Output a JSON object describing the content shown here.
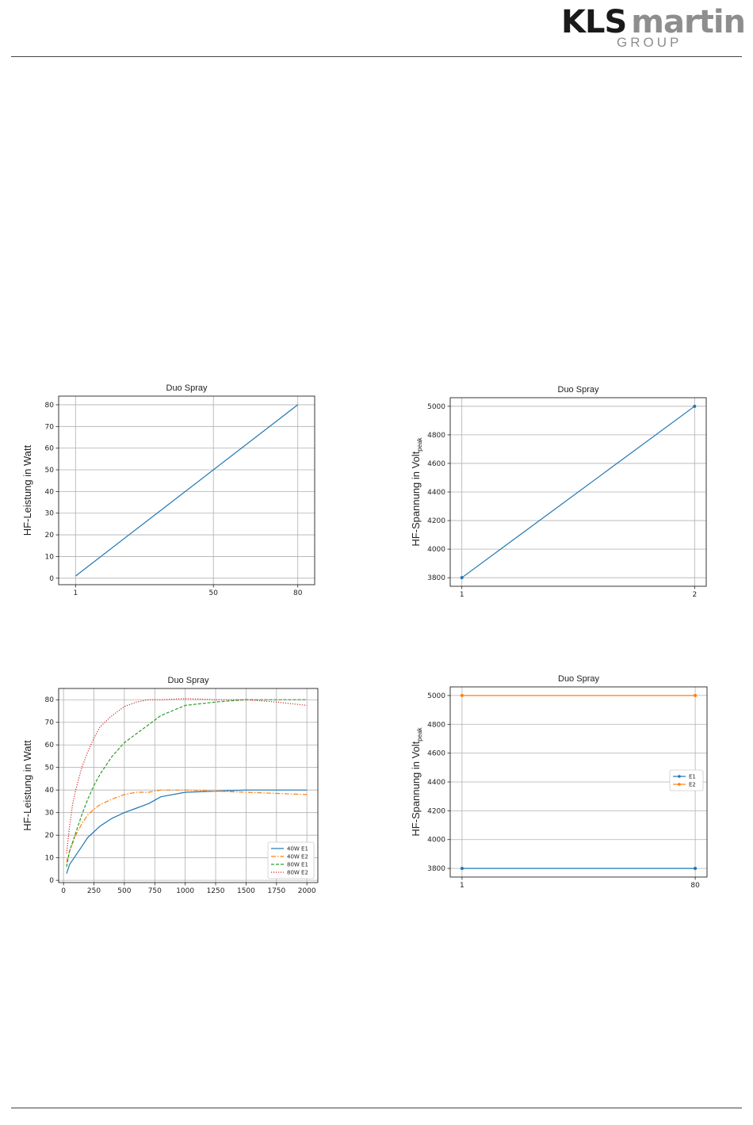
{
  "header": {
    "logo_text": "KLS martin",
    "logo_kls": "KLS",
    "logo_martin": "martin",
    "logo_group": "GROUP"
  },
  "colors": {
    "blue": "#1f77b4",
    "orange": "#ff7f0e",
    "green": "#2ca02c",
    "red": "#d62728",
    "grid": "#b0b0b0",
    "logo_gray": "#8e8e8e",
    "logo_dark": "#1a1a1a"
  },
  "chart_data": [
    {
      "id": "c1",
      "type": "line",
      "title": "Duo Spray",
      "ylabel": "HF-Leistung in Watt",
      "ylabel_sub": "",
      "xlim": [
        -5,
        86
      ],
      "ylim": [
        -3,
        84
      ],
      "xticks": [
        1,
        50,
        80
      ],
      "yticks": [
        0,
        10,
        20,
        30,
        40,
        50,
        60,
        70,
        80
      ],
      "grid": true,
      "legend": null,
      "series": [
        {
          "x": [
            1,
            80
          ],
          "y": [
            1,
            80
          ],
          "color": "#1f77b4",
          "dash": "",
          "marker": false
        }
      ]
    },
    {
      "id": "c2",
      "type": "line",
      "title": "Duo Spray",
      "ylabel": "HF-Spannung in Volt",
      "ylabel_sub": "peak",
      "xlim": [
        0.95,
        2.05
      ],
      "ylim": [
        3740,
        5060
      ],
      "xticks": [
        1,
        2
      ],
      "yticks": [
        3800,
        4000,
        4200,
        4400,
        4600,
        4800,
        5000
      ],
      "grid": true,
      "legend": null,
      "series": [
        {
          "x": [
            1,
            2
          ],
          "y": [
            3800,
            5000
          ],
          "color": "#1f77b4",
          "dash": "",
          "marker": true
        }
      ]
    },
    {
      "id": "c3",
      "type": "line",
      "title": "Duo Spray",
      "ylabel": "HF-Leistung in Watt",
      "ylabel_sub": "",
      "xlim": [
        -40,
        2090
      ],
      "ylim": [
        -1,
        85
      ],
      "xticks": [
        0,
        250,
        500,
        750,
        1000,
        1250,
        1500,
        1750,
        2000
      ],
      "yticks": [
        0,
        10,
        20,
        30,
        40,
        50,
        60,
        70,
        80
      ],
      "grid": true,
      "legend": "lower right",
      "series": [
        {
          "name": "40W E1",
          "color": "#1f77b4",
          "dash": "",
          "x": [
            25,
            50,
            100,
            150,
            200,
            300,
            400,
            500,
            600,
            700,
            800,
            1000,
            1250,
            1500,
            2000
          ],
          "y": [
            3,
            7,
            11,
            15,
            19,
            24,
            27.5,
            30,
            32,
            34,
            37,
            39,
            39.5,
            40,
            40
          ]
        },
        {
          "name": "40W E2",
          "color": "#ff7f0e",
          "dash": "6,2,1.5,2",
          "x": [
            25,
            50,
            100,
            150,
            200,
            250,
            300,
            400,
            500,
            600,
            700,
            800,
            1000,
            1250,
            1500,
            2000
          ],
          "y": [
            8,
            13,
            20,
            25,
            29,
            31.5,
            33.5,
            36,
            38,
            39,
            39,
            40,
            40,
            39.5,
            39,
            38
          ]
        },
        {
          "name": "80W E1",
          "color": "#2ca02c",
          "dash": "4,2",
          "x": [
            25,
            50,
            100,
            150,
            200,
            250,
            300,
            400,
            500,
            600,
            700,
            800,
            1000,
            1250,
            1500,
            2000
          ],
          "y": [
            6,
            13,
            21,
            29,
            36,
            42,
            47,
            55,
            61,
            65,
            69,
            73,
            77.5,
            79,
            80,
            80
          ]
        },
        {
          "name": "80W E2",
          "color": "#d62728",
          "dash": "1.2,1.8",
          "x": [
            25,
            50,
            75,
            100,
            150,
            200,
            250,
            300,
            400,
            500,
            600,
            700,
            800,
            1000,
            1250,
            1500,
            1750,
            2000
          ],
          "y": [
            12,
            24,
            34,
            40,
            50,
            57,
            63,
            68,
            73,
            77,
            79,
            80,
            80,
            80.5,
            80,
            80,
            79,
            77.5
          ]
        }
      ]
    },
    {
      "id": "c4",
      "type": "line",
      "title": "Duo Spray",
      "ylabel": "HF-Spannung in Volt",
      "ylabel_sub": "peak",
      "xlim": [
        -3,
        84
      ],
      "ylim": [
        3740,
        5060
      ],
      "xticks": [
        1,
        80
      ],
      "yticks": [
        3800,
        4000,
        4200,
        4400,
        4600,
        4800,
        5000
      ],
      "grid": true,
      "legend": "center right",
      "series": [
        {
          "name": "E1",
          "x": [
            1,
            80
          ],
          "y": [
            3800,
            3800
          ],
          "color": "#1f77b4",
          "dash": "",
          "marker": true
        },
        {
          "name": "E2",
          "x": [
            1,
            80
          ],
          "y": [
            5000,
            5000
          ],
          "color": "#ff7f0e",
          "dash": "",
          "marker": true
        }
      ]
    }
  ]
}
